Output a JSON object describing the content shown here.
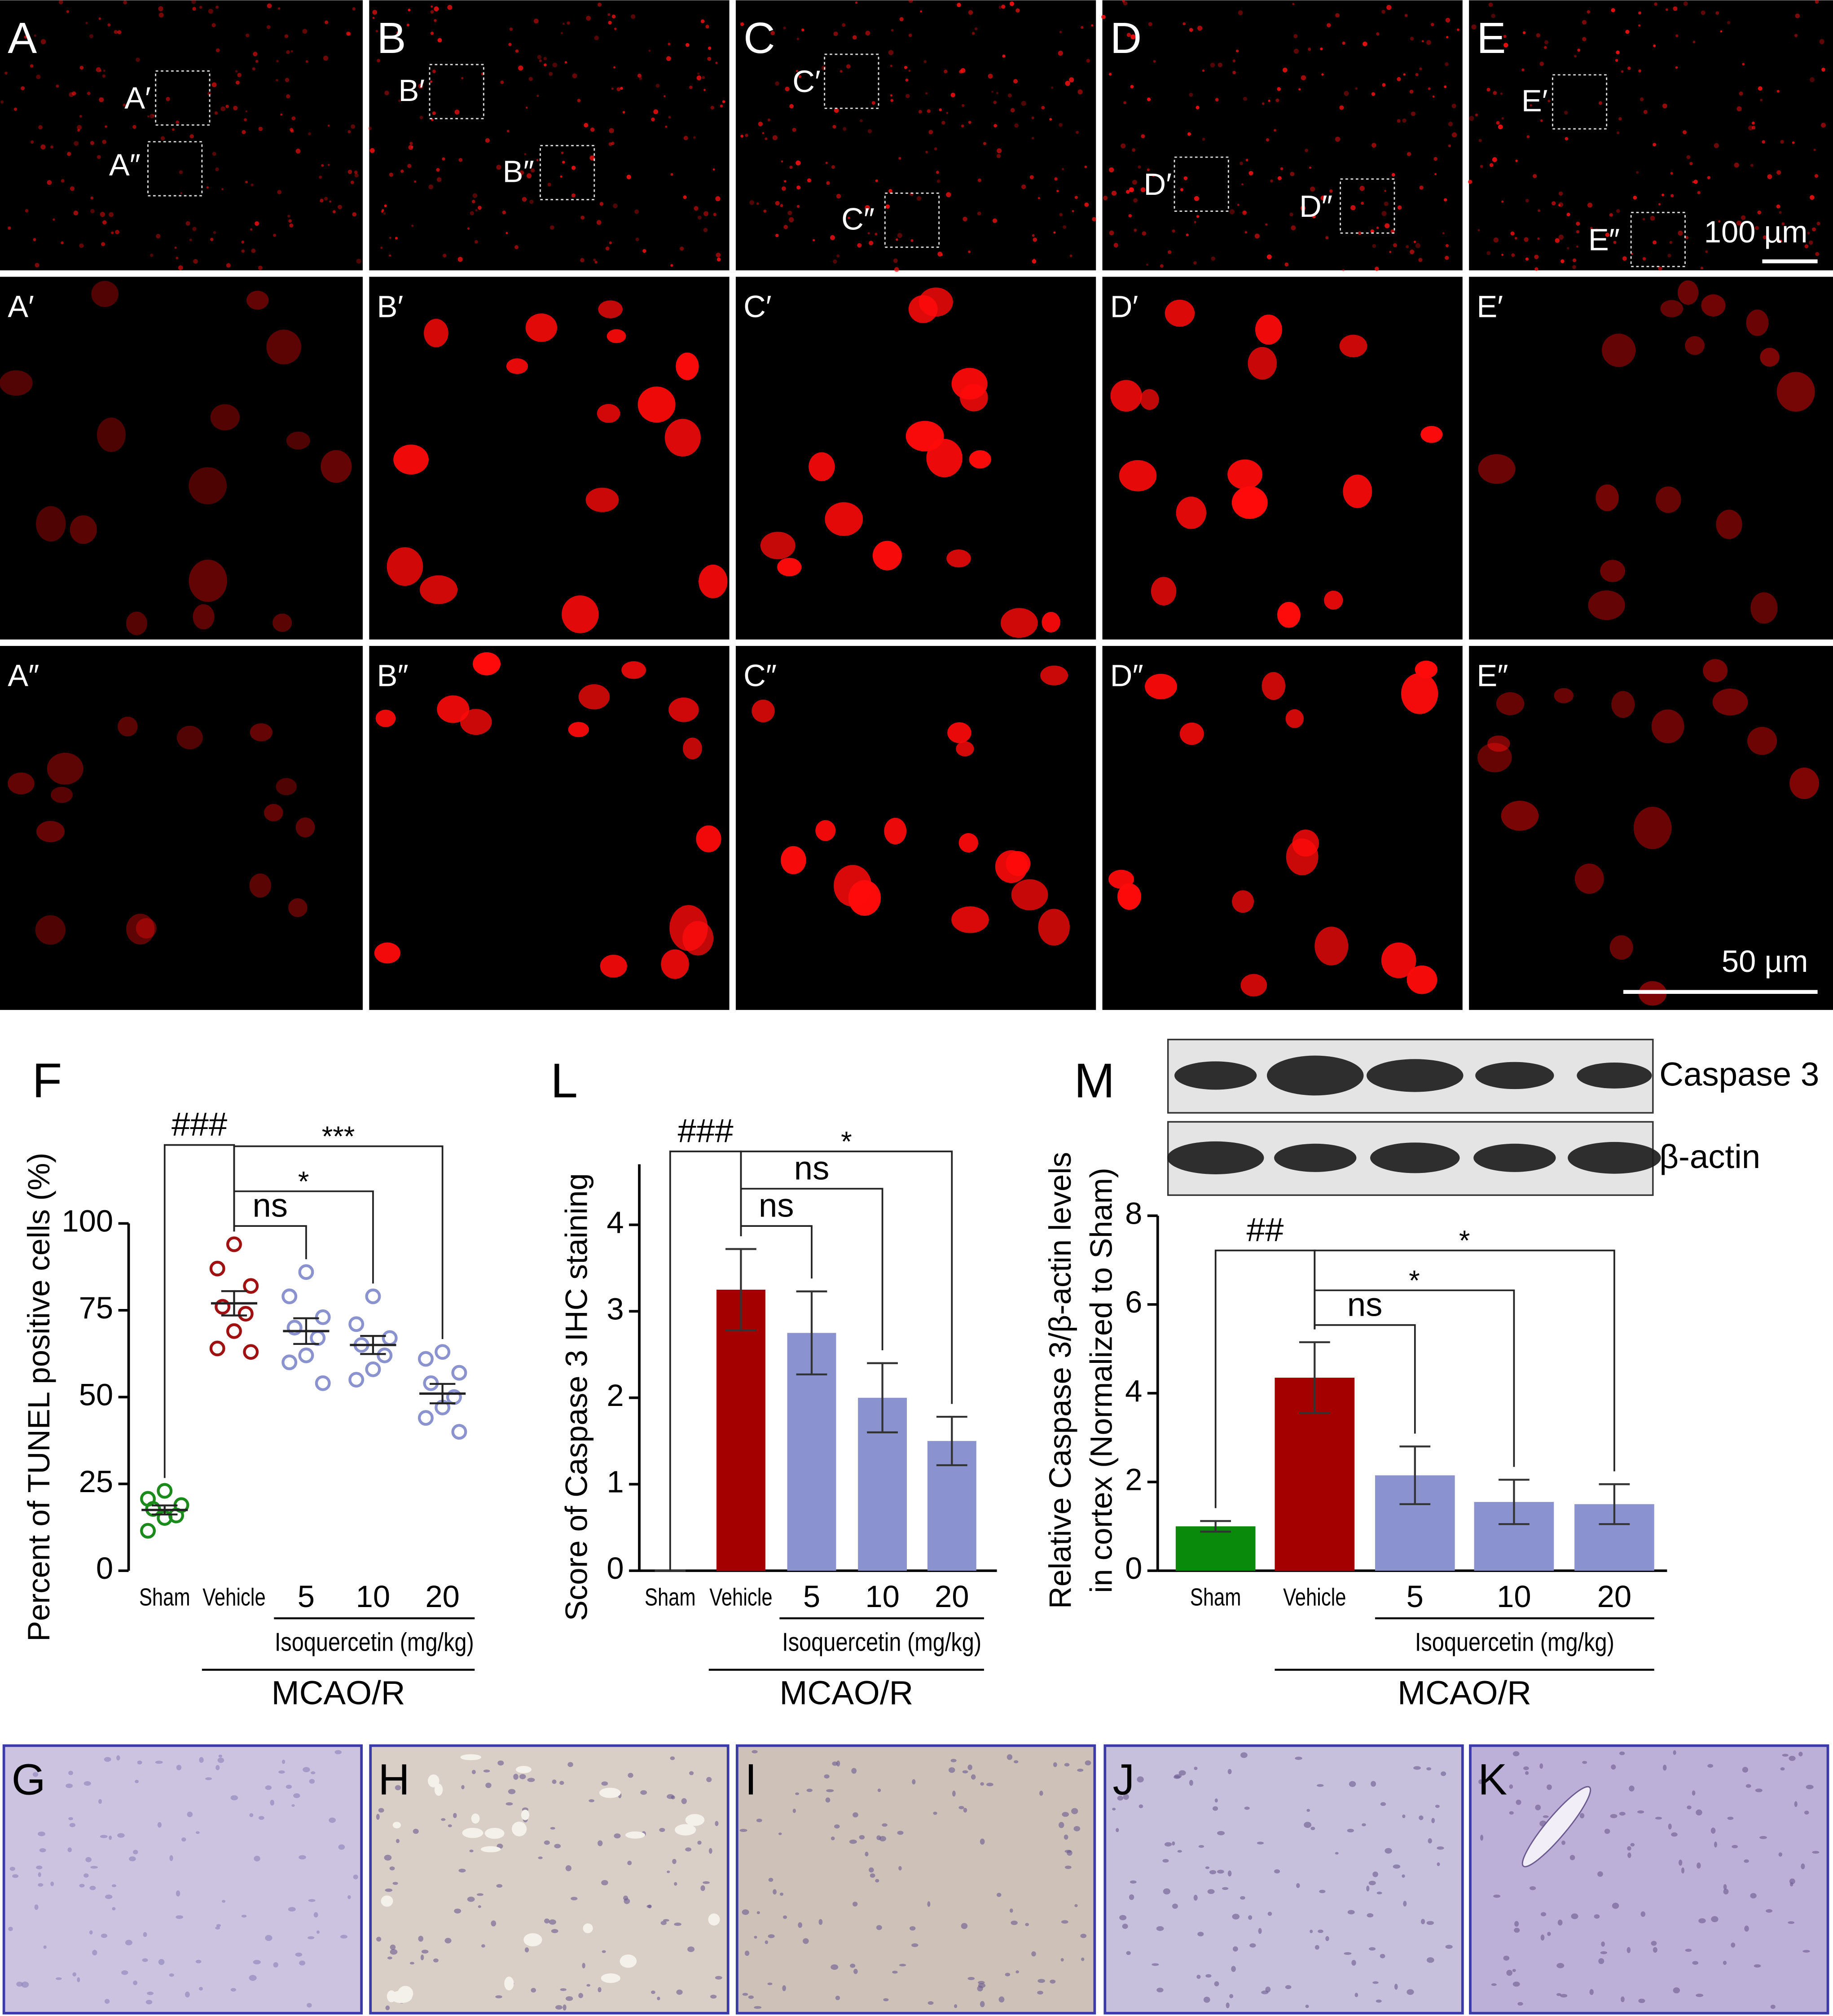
{
  "figure": {
    "fluorescence": {
      "row_labels": [
        [
          "A",
          "B",
          "C",
          "D",
          "E"
        ],
        [
          "A′",
          "B′",
          "C′",
          "D′",
          "E′"
        ],
        [
          "A″",
          "B″",
          "C″",
          "D″",
          "E″"
        ]
      ],
      "inset_labels": [
        [
          "A′",
          "A″"
        ],
        [
          "B′",
          "B″"
        ],
        [
          "C′",
          "C″"
        ],
        [
          "D′",
          "D″"
        ],
        [
          "E′",
          "E″"
        ]
      ],
      "scale_bars": [
        "100 µm",
        "50 µm"
      ]
    },
    "ihc_panels": [
      "G",
      "H",
      "I",
      "J",
      "K"
    ],
    "blot": {
      "bands": [
        "Caspase 3",
        "β-actin"
      ]
    }
  },
  "chart_data": [
    {
      "type": "dotplot",
      "panel": "F",
      "ylabel": "Percent of TUNEL positive cells (%)",
      "categories": [
        "Sham",
        "Vehicle",
        "5",
        "10",
        "20"
      ],
      "colors": [
        "#1a8a1a",
        "#a01010",
        "#8a93d0",
        "#8a93d0",
        "#8a93d0"
      ],
      "points": [
        [
          23,
          20.7,
          18.9,
          17.8,
          15.9,
          15.2,
          11.5
        ],
        [
          94,
          87,
          82,
          76,
          74,
          69,
          64,
          63
        ],
        [
          86,
          79,
          73,
          70,
          67,
          62,
          60,
          54
        ],
        [
          79,
          71,
          67,
          65,
          62,
          58,
          55
        ],
        [
          63,
          61,
          57,
          54,
          50,
          47,
          44,
          40
        ]
      ],
      "means": [
        17.5,
        77,
        69,
        65,
        51
      ],
      "sems": [
        1.3,
        3.5,
        3.7,
        2.6,
        2.8
      ],
      "ylim": [
        0,
        100
      ],
      "yticks": [
        0,
        25,
        50,
        75,
        100
      ],
      "group_labels": [
        {
          "text": "Isoquercetin (mg/kg)",
          "from": 2,
          "to": 4
        },
        {
          "text": "MCAO/R",
          "from": 1,
          "to": 4
        }
      ],
      "annotations": [
        {
          "text": "###",
          "from": 0,
          "to": 1
        },
        {
          "text": "ns",
          "from": 1,
          "to": 2
        },
        {
          "text": "*",
          "from": 1,
          "to": 3
        },
        {
          "text": "***",
          "from": 1,
          "to": 4
        }
      ]
    },
    {
      "type": "bar",
      "panel": "L",
      "ylabel": "Score of Caspase 3 IHC staining",
      "categories": [
        "Sham",
        "Vehicle",
        "5",
        "10",
        "20"
      ],
      "colors": [
        "#8a93d0",
        "#a50000",
        "#8a93d0",
        "#8a93d0",
        "#8a93d0"
      ],
      "values": [
        0,
        3.25,
        2.75,
        2.0,
        1.5
      ],
      "errors": [
        0,
        0.47,
        0.48,
        0.4,
        0.28
      ],
      "ylim": [
        0,
        4.7
      ],
      "yticks": [
        0,
        1,
        2,
        3,
        4
      ],
      "group_labels": [
        {
          "text": "Isoquercetin (mg/kg)",
          "from": 2,
          "to": 4
        },
        {
          "text": "MCAO/R",
          "from": 1,
          "to": 4
        }
      ],
      "annotations": [
        {
          "text": "###",
          "from": 0,
          "to": 1
        },
        {
          "text": "ns",
          "from": 1,
          "to": 2
        },
        {
          "text": "ns",
          "from": 1,
          "to": 3
        },
        {
          "text": "*",
          "from": 1,
          "to": 4
        }
      ]
    },
    {
      "type": "bar",
      "panel": "M",
      "ylabel": [
        "Relative Caspase 3/β-actin levels",
        "in cortex (Normalized to Sham)"
      ],
      "categories": [
        "Sham",
        "Vehicle",
        "5",
        "10",
        "20"
      ],
      "colors": [
        "#0a8a0a",
        "#a50000",
        "#8a93d0",
        "#8a93d0",
        "#8a93d0"
      ],
      "values": [
        1.0,
        4.35,
        2.15,
        1.55,
        1.5
      ],
      "errors": [
        0.12,
        0.8,
        0.65,
        0.5,
        0.45
      ],
      "ylim": [
        0,
        8
      ],
      "yticks": [
        0,
        2,
        4,
        6,
        8
      ],
      "group_labels": [
        {
          "text": "Isoquercetin (mg/kg)",
          "from": 2,
          "to": 4
        },
        {
          "text": "MCAO/R",
          "from": 1,
          "to": 4
        }
      ],
      "annotations": [
        {
          "text": "##",
          "from": 0,
          "to": 1
        },
        {
          "text": "ns",
          "from": 1,
          "to": 2
        },
        {
          "text": "*",
          "from": 1,
          "to": 3
        },
        {
          "text": "*",
          "from": 1,
          "to": 4
        }
      ]
    }
  ]
}
